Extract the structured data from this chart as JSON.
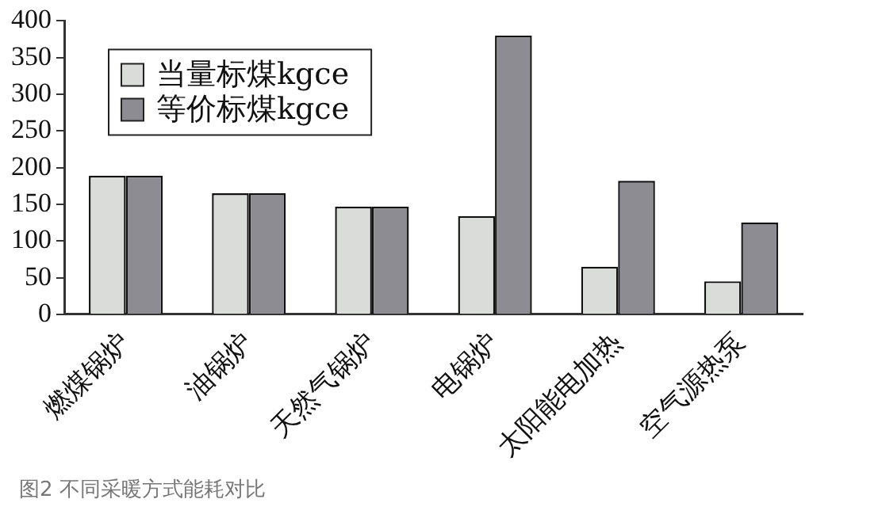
{
  "chart_data": {
    "type": "bar",
    "categories": [
      "燃煤锅炉",
      "油锅炉",
      "天然气锅炉",
      "电锅炉",
      "太阳能电加热",
      "空气源热泵"
    ],
    "series": [
      {
        "name": "当量标煤kgce",
        "color": "#d9dcd9",
        "values": [
          189,
          165,
          147,
          134,
          65,
          45
        ]
      },
      {
        "name": "等价标煤kgce",
        "color": "#8c8c92",
        "values": [
          189,
          165,
          147,
          380,
          182,
          125
        ]
      }
    ],
    "ylim": [
      0,
      400
    ],
    "yticks": [
      0,
      50,
      100,
      150,
      200,
      250,
      300,
      350,
      400
    ],
    "grid": false,
    "legend": "top left",
    "annotations": [
      "图2 不同采暖方式能耗对比"
    ]
  }
}
